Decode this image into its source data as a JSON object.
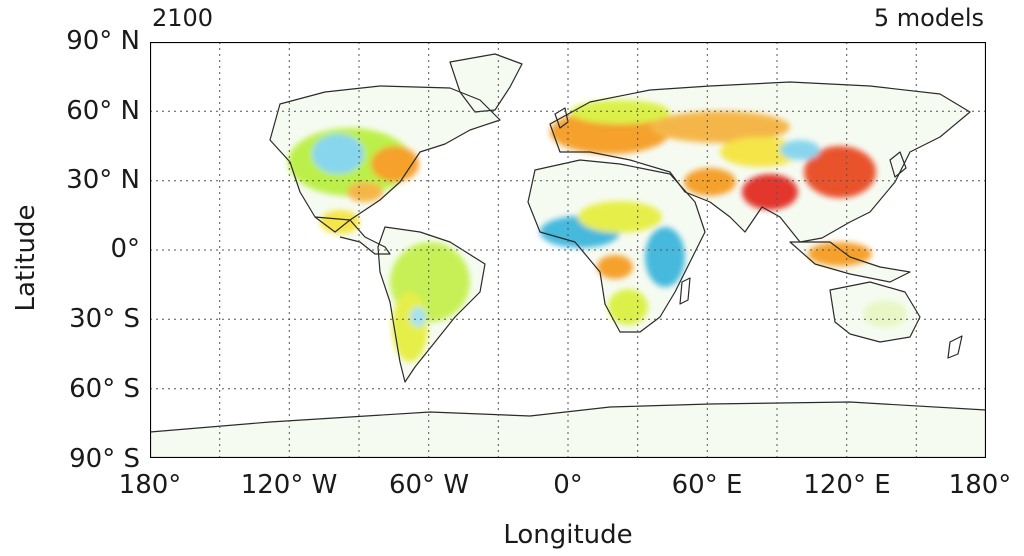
{
  "map": {
    "corner_left": "2100",
    "corner_right": "5 models",
    "x_axis_title": "Longitude",
    "y_axis_title": "Latitude",
    "lat_ticks": [
      "90° N",
      "60° N",
      "30° N",
      "0°",
      "30° S",
      "60° S",
      "90° S"
    ],
    "lon_ticks": [
      "180°",
      "120° W",
      "60° W",
      "0°",
      "60° E",
      "120° E",
      "180°"
    ],
    "projection": "equirectangular",
    "grid": "dotted every 30°",
    "colors": {
      "coastline": "#2b2b2b",
      "grid": "#555555",
      "frame": "#000000",
      "scale": [
        "#39b4dc",
        "#aee7f3",
        "#b7ef3a",
        "#f5e43a",
        "#f59a1f",
        "#e2261d"
      ]
    }
  }
}
